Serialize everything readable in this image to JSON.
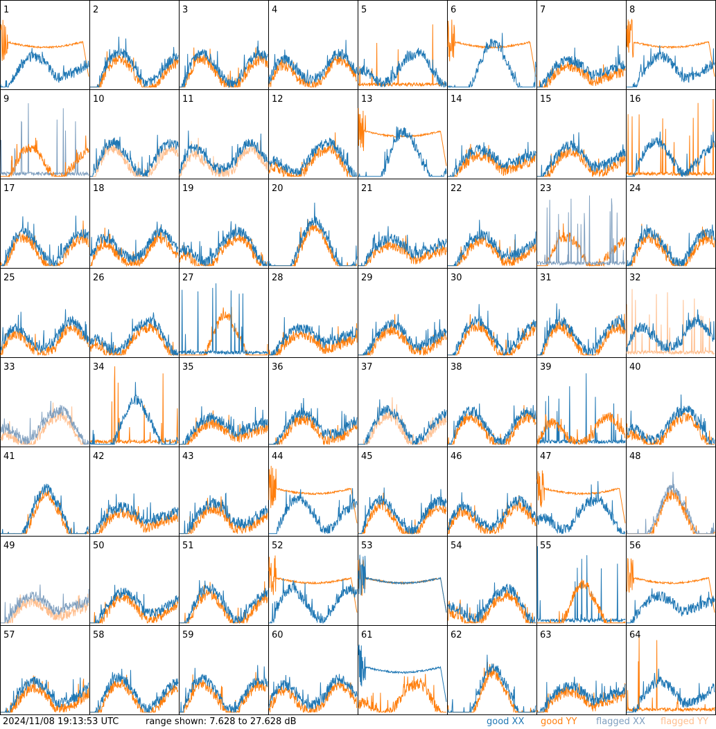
{
  "chart_data": {
    "type": "line",
    "layout": "small-multiples 8x8",
    "panel_labels": [
      "1",
      "2",
      "3",
      "4",
      "5",
      "6",
      "7",
      "8",
      "9",
      "10",
      "11",
      "12",
      "13",
      "14",
      "15",
      "16",
      "17",
      "18",
      "19",
      "20",
      "21",
      "22",
      "23",
      "24",
      "25",
      "26",
      "27",
      "28",
      "29",
      "30",
      "31",
      "32",
      "33",
      "34",
      "35",
      "36",
      "37",
      "38",
      "39",
      "40",
      "41",
      "42",
      "43",
      "44",
      "45",
      "46",
      "47",
      "48",
      "49",
      "50",
      "51",
      "52",
      "53",
      "54",
      "55",
      "56",
      "57",
      "58",
      "59",
      "60",
      "61",
      "62",
      "63",
      "64"
    ],
    "y_range_db": [
      7.628,
      27.628
    ],
    "series_styles": [
      {
        "name": "good XX",
        "color": "#1f77b4"
      },
      {
        "name": "good YY",
        "color": "#ff7f0e"
      },
      {
        "name": "flagged XX",
        "color": "#7f9fbf"
      },
      {
        "name": "flagged YY",
        "color": "#ffbf8f"
      }
    ],
    "panel_states": {
      "flagged_xx": [
        9,
        23,
        33,
        48,
        49
      ],
      "flagged_yy": [
        10,
        11,
        32,
        33,
        37,
        49
      ],
      "xx_spiky": [
        9,
        23,
        27,
        39,
        55
      ],
      "yy_spiky": [
        5,
        16,
        32,
        34,
        64
      ],
      "yy_smooth": [
        1,
        6,
        8,
        13,
        44,
        47,
        52,
        53,
        56
      ],
      "xx_smooth": [
        27,
        53,
        61
      ],
      "yy_dominant": [
        9,
        39,
        55
      ]
    }
  },
  "footer": {
    "timestamp": "2024/11/08 19:13:53 UTC",
    "range": "range shown: 7.628 to 27.628 dB",
    "legend": [
      "good XX",
      "good YY",
      "flagged XX",
      "flagged YY"
    ]
  }
}
